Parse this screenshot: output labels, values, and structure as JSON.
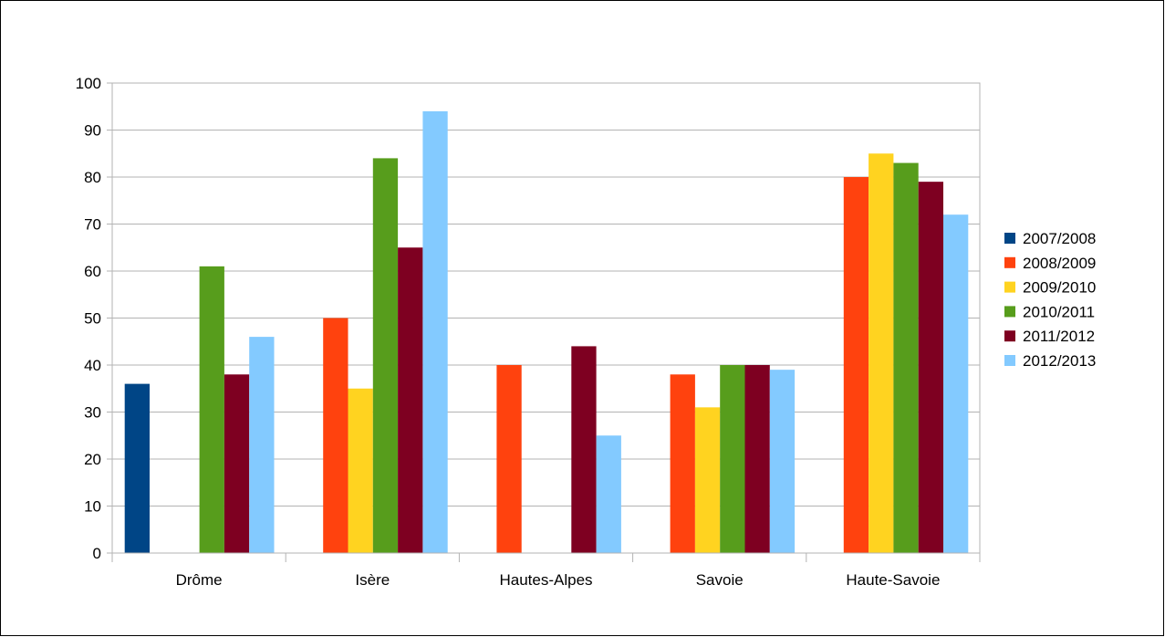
{
  "chart_data": {
    "type": "bar",
    "title": "",
    "xlabel": "",
    "ylabel": "",
    "ylim": [
      0,
      100
    ],
    "yticks": [
      0,
      10,
      20,
      30,
      40,
      50,
      60,
      70,
      80,
      90,
      100
    ],
    "grid": "horizontal",
    "legend_position": "right",
    "categories": [
      "Drôme",
      "Isère",
      "Hautes-Alpes",
      "Savoie",
      "Haute-Savoie"
    ],
    "series": [
      {
        "name": "2007/2008",
        "color": "#004586",
        "values": [
          36,
          0,
          0,
          0,
          0
        ]
      },
      {
        "name": "2008/2009",
        "color": "#ff420e",
        "values": [
          0,
          50,
          40,
          38,
          80
        ]
      },
      {
        "name": "2009/2010",
        "color": "#ffd320",
        "values": [
          0,
          35,
          0,
          31,
          85
        ]
      },
      {
        "name": "2010/2011",
        "color": "#579d1c",
        "values": [
          61,
          84,
          0,
          40,
          83
        ]
      },
      {
        "name": "2011/2012",
        "color": "#7e0021",
        "values": [
          38,
          65,
          44,
          40,
          79
        ]
      },
      {
        "name": "2012/2013",
        "color": "#83caff",
        "values": [
          46,
          94,
          25,
          39,
          72
        ]
      }
    ]
  }
}
